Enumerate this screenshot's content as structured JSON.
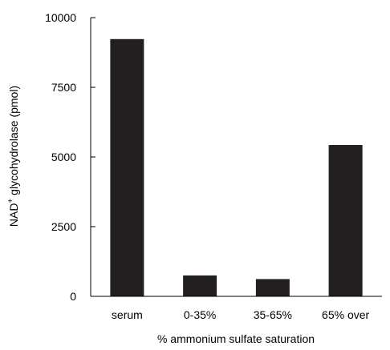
{
  "chart_data": {
    "type": "bar",
    "categories": [
      "serum",
      "0-35%",
      "35-65%",
      "65% over"
    ],
    "values": [
      9230,
      750,
      620,
      5430
    ],
    "xlabel": "% ammonium sulfate saturation",
    "ylabel_main": "NAD",
    "ylabel_sup": "+",
    "ylabel_rest": " glycohydrolase (pmol)",
    "ylim": [
      0,
      10000
    ],
    "yticks": [
      0,
      2500,
      5000,
      7500,
      10000
    ],
    "grid": false,
    "colors": {
      "bar": "#231f20",
      "axis": "#000000"
    }
  }
}
